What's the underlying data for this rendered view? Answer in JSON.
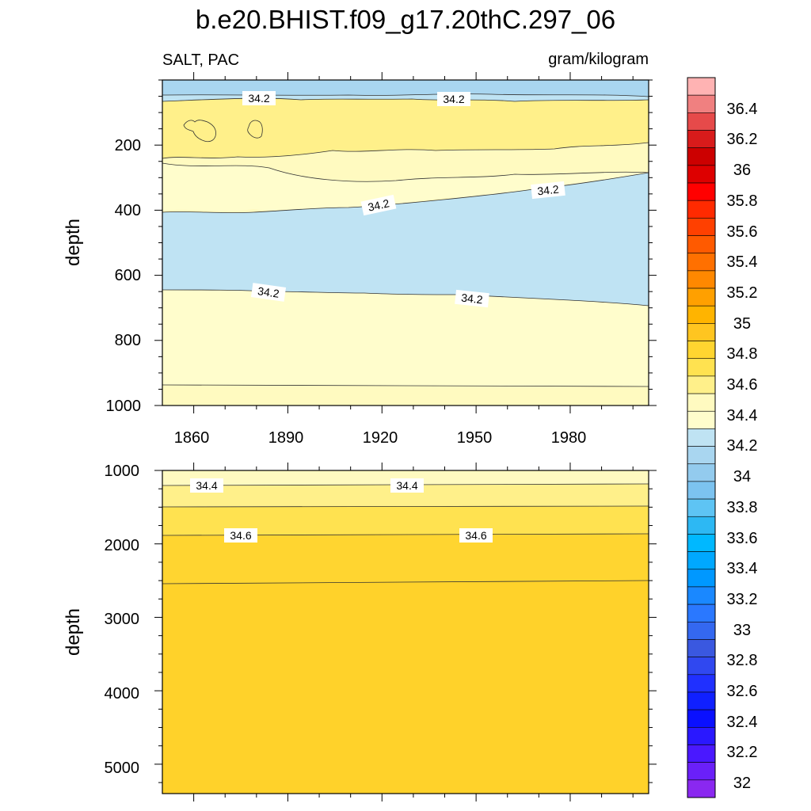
{
  "chart_data": [
    {
      "type": "contour",
      "title": "b.e20.BHIST.f09_g17.20thC.297_06",
      "left_subtitle": "SALT, PAC",
      "right_subtitle": "gram/kilogram",
      "ylabel": "depth",
      "xlim": [
        1850,
        2005
      ],
      "ylim": [
        1000,
        0
      ],
      "xticks": [
        "1860",
        "1890",
        "1920",
        "1950",
        "1980"
      ],
      "yticks": [
        "200",
        "400",
        "600",
        "800",
        "1000"
      ],
      "contour_labels": [
        "34.2",
        "34.2",
        "34.2",
        "34.2",
        "34.2",
        "34.2"
      ]
    },
    {
      "type": "contour",
      "ylabel": "depth",
      "xlim": [
        1850,
        2005
      ],
      "ylim": [
        5400,
        1000
      ],
      "yticks": [
        "1000",
        "2000",
        "3000",
        "4000",
        "5000"
      ],
      "contour_labels": [
        "34.4",
        "34.4",
        "34.6",
        "34.6"
      ]
    }
  ],
  "colorbar": {
    "labels": [
      "36.4",
      "36.2",
      "36",
      "35.8",
      "35.6",
      "35.4",
      "35.2",
      "35",
      "34.8",
      "34.6",
      "34.4",
      "34.2",
      "34",
      "33.8",
      "33.6",
      "33.4",
      "33.2",
      "33",
      "32.8",
      "32.6",
      "32.4",
      "32.2",
      "32"
    ],
    "colors": [
      "#ffb3b3",
      "#f08080",
      "#e64a4a",
      "#d81b1b",
      "#cc0000",
      "#dd0000",
      "#ff0000",
      "#ff2a00",
      "#ff4000",
      "#ff5a00",
      "#ff7000",
      "#ff8800",
      "#ffa000",
      "#ffb400",
      "#ffc520",
      "#ffd530",
      "#ffe250",
      "#fff08a",
      "#fffac0",
      "#fffdcc",
      "#bfe3f3",
      "#a9d6f0",
      "#93cbee",
      "#7cc3f0",
      "#5ec4f4",
      "#2db8f3",
      "#00b8ff",
      "#00a8ff",
      "#0098ff",
      "#1a88ff",
      "#2a78ff",
      "#3468f0",
      "#3a58e0",
      "#3048f0",
      "#2030ff",
      "#1020ff",
      "#0a10ff",
      "#2a18ff",
      "#4a18ff",
      "#6a20f8",
      "#8a28f0"
    ]
  }
}
